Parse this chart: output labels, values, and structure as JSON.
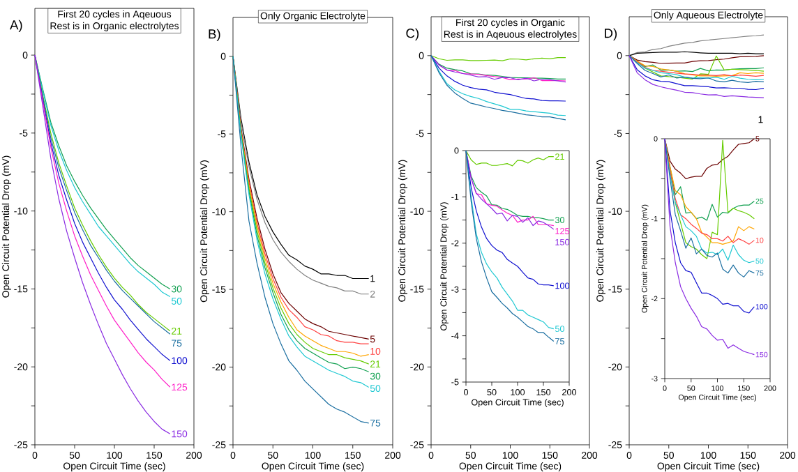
{
  "chart_data": [
    {
      "type": "line",
      "title": "First 20 cycles in Aqeuous",
      "subtitle": "Rest is in Organic electrolytes",
      "xlabel": "Open Circuit Time (sec)",
      "ylabel": "Open Circuit Potential Drop (mV)",
      "annotations": [
        "A)"
      ],
      "xlim": [
        0,
        200
      ],
      "ylim": [
        -25,
        3
      ],
      "xticks": [
        0,
        50,
        100,
        150,
        200
      ],
      "yticks": [
        -25,
        {
          "value": -22.5,
          "label": null
        },
        -20,
        {
          "value": -17.5,
          "label": null
        },
        -15,
        {
          "value": -12.5,
          "label": null
        },
        -10,
        {
          "value": -7.5,
          "label": null
        },
        -5,
        {
          "value": -2.5,
          "label": null
        },
        0
      ],
      "x": [
        0,
        10,
        20,
        30,
        40,
        50,
        60,
        70,
        80,
        90,
        100,
        110,
        120,
        130,
        140,
        150,
        160,
        170
      ],
      "series": [
        {
          "name": "30",
          "color": "#11a050",
          "values": [
            0,
            -2.2,
            -4.3,
            -5.8,
            -7.1,
            -8.1,
            -9.0,
            -9.8,
            -10.5,
            -11.2,
            -11.8,
            -12.4,
            -13.0,
            -13.5,
            -13.9,
            -14.3,
            -14.7,
            -15.0
          ]
        },
        {
          "name": "50",
          "color": "#1ec8d2",
          "values": [
            0,
            -2.3,
            -4.5,
            -6.1,
            -7.4,
            -8.5,
            -9.4,
            -10.2,
            -11.0,
            -11.6,
            -12.2,
            -12.8,
            -13.4,
            -13.9,
            -14.3,
            -14.7,
            -15.2,
            -15.5
          ]
        },
        {
          "name": "21",
          "color": "#66cc00",
          "values": [
            0,
            -2.6,
            -5.0,
            -6.9,
            -8.4,
            -9.8,
            -10.9,
            -11.9,
            -12.8,
            -13.6,
            -14.3,
            -14.9,
            -15.4,
            -16.0,
            -16.5,
            -16.9,
            -17.3,
            -17.7
          ]
        },
        {
          "name": "75",
          "color": "#1a6ea0",
          "values": [
            0,
            -2.7,
            -5.3,
            -7.2,
            -8.7,
            -10.1,
            -11.2,
            -12.2,
            -13.0,
            -13.8,
            -14.5,
            -15.1,
            -15.6,
            -16.1,
            -16.6,
            -17.1,
            -17.5,
            -17.9
          ]
        },
        {
          "name": "100",
          "color": "#1010d0",
          "values": [
            0,
            -2.9,
            -5.6,
            -7.7,
            -9.3,
            -10.8,
            -12.0,
            -13.0,
            -14.0,
            -14.9,
            -15.7,
            -16.3,
            -17.0,
            -17.6,
            -18.2,
            -18.7,
            -19.2,
            -19.6
          ]
        },
        {
          "name": "125",
          "color": "#ff1ec8",
          "values": [
            0,
            -3.0,
            -5.9,
            -8.2,
            -10.0,
            -11.6,
            -12.9,
            -14.1,
            -15.1,
            -16.1,
            -17.0,
            -17.7,
            -18.4,
            -19.1,
            -19.7,
            -20.2,
            -20.8,
            -21.3
          ]
        },
        {
          "name": "150",
          "color": "#8a2be2",
          "values": [
            0,
            -3.3,
            -6.6,
            -9.2,
            -11.3,
            -13.0,
            -14.6,
            -16.0,
            -17.3,
            -18.5,
            -19.5,
            -20.5,
            -21.4,
            -22.2,
            -22.9,
            -23.5,
            -24.0,
            -24.3
          ]
        }
      ]
    },
    {
      "type": "line",
      "title": "Only Organic Electrolyte",
      "xlabel": "Open Circuit Time (sec)",
      "ylabel": "Open Circuit Potential Drop (mV)",
      "annotations": [
        "B)"
      ],
      "xlim": [
        0,
        200
      ],
      "ylim": [
        -25,
        2.5
      ],
      "xticks": [
        0,
        50,
        100,
        150,
        200
      ],
      "yticks": [
        -25,
        {
          "value": -22.5,
          "label": null
        },
        -20,
        {
          "value": -17.5,
          "label": null
        },
        -15,
        {
          "value": -12.5,
          "label": null
        },
        -10,
        {
          "value": -7.5,
          "label": null
        },
        -5,
        {
          "value": -2.5,
          "label": null
        },
        0
      ],
      "x": [
        0,
        10,
        20,
        30,
        40,
        50,
        60,
        70,
        80,
        90,
        100,
        110,
        120,
        130,
        140,
        150,
        160,
        170
      ],
      "series": [
        {
          "name": "1",
          "color": "#000000",
          "values": [
            0,
            -4.0,
            -6.8,
            -8.9,
            -10.3,
            -11.3,
            -12.1,
            -12.8,
            -13.1,
            -13.5,
            -13.7,
            -14.0,
            -14.0,
            -14.1,
            -14.1,
            -14.3,
            -14.3,
            -14.3
          ]
        },
        {
          "name": "2",
          "color": "#808080",
          "values": [
            0,
            -4.2,
            -7.1,
            -9.2,
            -10.7,
            -11.8,
            -12.6,
            -13.2,
            -13.7,
            -14.1,
            -14.4,
            -14.6,
            -14.8,
            -14.9,
            -15.1,
            -15.1,
            -15.3,
            -15.3
          ]
        },
        {
          "name": "5",
          "color": "#6b0000",
          "values": [
            0,
            -4.6,
            -7.9,
            -10.4,
            -12.4,
            -14.0,
            -15.2,
            -15.9,
            -16.4,
            -16.9,
            -17.2,
            -17.4,
            -17.7,
            -17.8,
            -17.9,
            -18.0,
            -18.1,
            -18.2
          ]
        },
        {
          "name": "10",
          "color": "#ff4040",
          "values": [
            0,
            -4.7,
            -8.1,
            -10.7,
            -12.7,
            -14.3,
            -15.5,
            -16.3,
            -16.8,
            -17.4,
            -17.6,
            -17.9,
            -18.0,
            -18.3,
            -18.4,
            -18.4,
            -18.5,
            -18.5
          ]
        },
        {
          "color": "#ffa500",
          "values": [
            0,
            -4.8,
            -8.3,
            -10.9,
            -13.0,
            -14.6,
            -15.8,
            -16.8,
            -17.6,
            -18.0,
            -18.3,
            -18.6,
            -18.8,
            -19.0,
            -19.0,
            -19.1,
            -19.3,
            -19.2
          ]
        },
        {
          "name": "21",
          "color": "#66cc00",
          "values": [
            0,
            -4.9,
            -8.5,
            -11.2,
            -13.3,
            -14.9,
            -16.2,
            -17.2,
            -17.9,
            -18.4,
            -18.8,
            -19.0,
            -19.2,
            -19.2,
            -19.4,
            -19.5,
            -19.6,
            -19.8
          ]
        },
        {
          "name": "30",
          "color": "#11a050",
          "values": [
            0,
            -5.0,
            -8.7,
            -11.5,
            -13.6,
            -15.2,
            -16.6,
            -17.6,
            -18.3,
            -18.8,
            -19.1,
            -19.4,
            -19.7,
            -19.8,
            -20.1,
            -20.0,
            -20.1,
            -20.3
          ]
        },
        {
          "name": "50",
          "color": "#1ec8d2",
          "values": [
            0,
            -5.1,
            -8.9,
            -11.8,
            -14.0,
            -15.6,
            -16.9,
            -18.0,
            -18.7,
            -19.3,
            -19.6,
            -19.9,
            -20.2,
            -20.4,
            -20.6,
            -20.9,
            -21.0,
            -21.3
          ]
        },
        {
          "name": "75",
          "color": "#1a6ea0",
          "values": [
            0,
            -5.8,
            -10.6,
            -13.3,
            -15.5,
            -17.2,
            -18.5,
            -19.6,
            -20.2,
            -20.9,
            -21.4,
            -21.9,
            -22.4,
            -22.7,
            -22.9,
            -23.2,
            -23.5,
            -23.6
          ]
        }
      ]
    },
    {
      "type": "line",
      "title": "First 20 cycles in Organic",
      "subtitle": "Rest is in Aqeuous electrolytes",
      "xlabel": "Open Circuit Time (sec)",
      "ylabel": "Open Circuit Potential Drop (mV)",
      "annotations": [
        "C)"
      ],
      "xlim": [
        0,
        200
      ],
      "ylim": [
        -25,
        2.5
      ],
      "xticks": [
        0,
        50,
        100,
        150,
        200
      ],
      "yticks": [
        -25,
        {
          "value": -22.5,
          "label": null
        },
        -20,
        {
          "value": -17.5,
          "label": null
        },
        -15,
        {
          "value": -12.5,
          "label": null
        },
        -10,
        {
          "value": -7.5,
          "label": null
        },
        -5,
        {
          "value": -2.5,
          "label": null
        },
        0
      ],
      "x": [
        0,
        10,
        20,
        30,
        40,
        50,
        60,
        70,
        80,
        90,
        100,
        110,
        120,
        130,
        140,
        150,
        160,
        170
      ],
      "series": [
        {
          "color": "#66cc00",
          "values": [
            0,
            -0.2,
            -0.3,
            -0.27,
            -0.27,
            -0.32,
            -0.32,
            -0.3,
            -0.28,
            -0.33,
            -0.21,
            -0.22,
            -0.27,
            -0.2,
            -0.16,
            -0.2,
            -0.13,
            -0.13
          ]
        },
        {
          "color": "#11a050",
          "values": [
            0,
            -0.55,
            -0.8,
            -0.9,
            -0.98,
            -1.17,
            -1.18,
            -1.25,
            -1.27,
            -1.33,
            -1.4,
            -1.42,
            -1.42,
            -1.45,
            -1.45,
            -1.47,
            -1.5,
            -1.5
          ]
        },
        {
          "color": "#ff1ec8",
          "values": [
            0,
            -0.6,
            -0.93,
            -0.95,
            -1.15,
            -1.18,
            -1.2,
            -1.28,
            -1.35,
            -1.4,
            -1.55,
            -1.5,
            -1.5,
            -1.42,
            -1.6,
            -1.6,
            -1.6,
            -1.62
          ]
        },
        {
          "color": "#8a2be2",
          "values": [
            0,
            -0.6,
            -0.92,
            -1.05,
            -1.15,
            -1.25,
            -1.37,
            -1.35,
            -1.52,
            -1.4,
            -1.42,
            -1.55,
            -1.45,
            -1.62,
            -1.52,
            -1.55,
            -1.62,
            -1.7
          ]
        },
        {
          "color": "#1010d0",
          "values": [
            0,
            -0.8,
            -1.3,
            -1.65,
            -1.9,
            -2.05,
            -2.15,
            -2.2,
            -2.35,
            -2.43,
            -2.5,
            -2.63,
            -2.75,
            -2.78,
            -2.88,
            -2.9,
            -2.9,
            -2.92
          ]
        },
        {
          "color": "#1ec8d2",
          "values": [
            0,
            -1.0,
            -1.8,
            -2.2,
            -2.45,
            -2.62,
            -2.75,
            -2.95,
            -3.1,
            -3.25,
            -3.45,
            -3.45,
            -3.55,
            -3.6,
            -3.65,
            -3.7,
            -3.82,
            -3.85
          ]
        },
        {
          "color": "#1a6ea0",
          "values": [
            0,
            -1.1,
            -1.9,
            -2.4,
            -2.75,
            -3.05,
            -3.17,
            -3.3,
            -3.4,
            -3.52,
            -3.6,
            -3.7,
            -3.8,
            -3.85,
            -3.93,
            -3.93,
            -4.03,
            -4.12
          ]
        }
      ]
    },
    {
      "type": "line",
      "xlabel": "Open Circuit Time (sec)",
      "ylabel": "Open Circuit Potential Drop (mV)",
      "xlim": [
        0,
        200
      ],
      "ylim": [
        -5,
        0
      ],
      "xticks": [
        0,
        50,
        100,
        150,
        200
      ],
      "yticks": [
        -5,
        {
          "value": -4.5,
          "label": null
        },
        -4,
        {
          "value": -3.5,
          "label": null
        },
        -3,
        {
          "value": -2.5,
          "label": null
        },
        -2,
        {
          "value": -1.5,
          "label": null
        },
        -1,
        {
          "value": -0.5,
          "label": null
        },
        0
      ],
      "x": [
        0,
        10,
        20,
        30,
        40,
        50,
        60,
        70,
        80,
        90,
        100,
        110,
        120,
        130,
        140,
        150,
        160,
        170
      ],
      "series": [
        {
          "name": "21",
          "color": "#66cc00",
          "values": [
            0,
            -0.2,
            -0.3,
            -0.27,
            -0.27,
            -0.32,
            -0.32,
            -0.3,
            -0.28,
            -0.33,
            -0.21,
            -0.22,
            -0.27,
            -0.2,
            -0.16,
            -0.2,
            -0.13,
            -0.13
          ]
        },
        {
          "name": "30",
          "color": "#11a050",
          "values": [
            0,
            -0.55,
            -0.8,
            -0.9,
            -0.98,
            -1.17,
            -1.18,
            -1.25,
            -1.27,
            -1.33,
            -1.4,
            -1.42,
            -1.42,
            -1.45,
            -1.45,
            -1.47,
            -1.5,
            -1.5
          ]
        },
        {
          "name": "125",
          "color": "#ff1ec8",
          "values": [
            0,
            -0.6,
            -0.93,
            -0.95,
            -1.15,
            -1.18,
            -1.2,
            -1.28,
            -1.35,
            -1.4,
            -1.55,
            -1.5,
            -1.5,
            -1.42,
            -1.6,
            -1.6,
            -1.6,
            -1.62
          ]
        },
        {
          "name": "150",
          "color": "#8a2be2",
          "values": [
            0,
            -0.6,
            -0.92,
            -1.05,
            -1.15,
            -1.25,
            -1.37,
            -1.35,
            -1.52,
            -1.4,
            -1.42,
            -1.55,
            -1.45,
            -1.62,
            -1.52,
            -1.55,
            -1.62,
            -1.7
          ]
        },
        {
          "name": "100",
          "color": "#1010d0",
          "values": [
            0,
            -0.8,
            -1.3,
            -1.65,
            -1.9,
            -2.05,
            -2.15,
            -2.2,
            -2.35,
            -2.43,
            -2.5,
            -2.63,
            -2.75,
            -2.78,
            -2.88,
            -2.9,
            -2.9,
            -2.92
          ]
        },
        {
          "name": "50",
          "color": "#1ec8d2",
          "values": [
            0,
            -1.0,
            -1.8,
            -2.2,
            -2.45,
            -2.62,
            -2.75,
            -2.95,
            -3.1,
            -3.25,
            -3.45,
            -3.45,
            -3.55,
            -3.6,
            -3.65,
            -3.7,
            -3.82,
            -3.85
          ]
        },
        {
          "name": "75",
          "color": "#1a6ea0",
          "values": [
            0,
            -1.1,
            -1.9,
            -2.4,
            -2.75,
            -3.05,
            -3.17,
            -3.3,
            -3.4,
            -3.52,
            -3.6,
            -3.7,
            -3.8,
            -3.85,
            -3.93,
            -3.93,
            -4.03,
            -4.12
          ]
        }
      ]
    },
    {
      "type": "line",
      "title": "Only Aqueous Electrolyte",
      "xlabel": "Open Circuit Time (sec)",
      "ylabel": "Open Circuit Potential Drop (mV)",
      "annotations": [
        "D)",
        "1"
      ],
      "xlim": [
        0,
        200
      ],
      "ylim": [
        -25,
        2.5
      ],
      "xticks": [
        0,
        50,
        100,
        150,
        200
      ],
      "yticks": [
        -25,
        {
          "value": -22.5,
          "label": null
        },
        -20,
        {
          "value": -17.5,
          "label": null
        },
        -15,
        {
          "value": -12.5,
          "label": null
        },
        -10,
        {
          "value": -7.5,
          "label": null
        },
        -5,
        {
          "value": -2.5,
          "label": null
        },
        0
      ],
      "x": [
        0,
        10,
        20,
        30,
        40,
        50,
        60,
        70,
        80,
        90,
        100,
        110,
        120,
        130,
        140,
        150,
        160,
        170
      ],
      "series": [
        {
          "color": "#808080",
          "values": [
            0,
            0.2,
            0.25,
            0.4,
            0.45,
            0.6,
            0.7,
            0.8,
            0.85,
            0.95,
            1.0,
            1.05,
            1.1,
            1.15,
            1.2,
            1.25,
            1.28,
            1.33
          ]
        },
        {
          "color": "#000000",
          "values": [
            0,
            0.15,
            0.18,
            0.2,
            0.22,
            0.22,
            0.22,
            0.25,
            0.22,
            0.18,
            0.15,
            0.15,
            0.15,
            0.15,
            0.12,
            0.15,
            0.12,
            0.12
          ]
        },
        {
          "color": "#6b0000",
          "values": [
            0,
            -0.28,
            -0.38,
            -0.43,
            -0.5,
            -0.48,
            -0.47,
            -0.47,
            -0.37,
            -0.33,
            -0.32,
            -0.26,
            -0.22,
            -0.14,
            -0.07,
            -0.06,
            -0.05,
            0.0
          ]
        },
        {
          "color": "#11a050",
          "values": [
            0,
            -0.35,
            -0.7,
            -0.6,
            -0.93,
            -0.92,
            -1.0,
            -0.98,
            -1.02,
            -0.82,
            -0.98,
            -0.92,
            -0.93,
            -0.87,
            -0.84,
            -0.83,
            -0.83,
            -0.78
          ]
        },
        {
          "color": "#66cc00",
          "values": [
            0,
            -0.4,
            -0.8,
            -1.05,
            -1.3,
            -1.35,
            -1.38,
            -1.45,
            -1.5,
            -1.17,
            -1.2,
            -0.02,
            -0.92,
            -0.87,
            -0.9,
            -0.92,
            -0.95,
            -1.0
          ]
        },
        {
          "color": "#ffa500",
          "values": [
            0,
            -0.35,
            -0.65,
            -0.7,
            -0.85,
            -0.92,
            -1.0,
            -1.17,
            -1.23,
            -1.3,
            -1.3,
            -1.32,
            -1.3,
            -1.28,
            -1.1,
            -1.15,
            -1.1,
            -1.13
          ]
        },
        {
          "color": "#ff4040",
          "values": [
            0,
            -0.4,
            -0.75,
            -0.95,
            -1.0,
            -1.07,
            -1.12,
            -1.18,
            -1.2,
            -1.25,
            -1.25,
            -1.28,
            -1.22,
            -1.3,
            -1.25,
            -1.28,
            -1.32,
            -1.27
          ]
        },
        {
          "color": "#1ec8d2",
          "values": [
            0,
            -0.45,
            -0.8,
            -0.95,
            -1.1,
            -1.15,
            -1.22,
            -1.38,
            -1.43,
            -1.42,
            -1.45,
            -1.38,
            -1.52,
            -1.33,
            -1.45,
            -1.52,
            -1.55,
            -1.53
          ]
        },
        {
          "color": "#1a6ea0",
          "values": [
            0,
            -0.5,
            -0.95,
            -1.15,
            -1.37,
            -1.24,
            -1.44,
            -1.38,
            -1.46,
            -1.48,
            -1.43,
            -1.63,
            -1.68,
            -1.58,
            -1.68,
            -1.73,
            -1.65,
            -1.68
          ]
        },
        {
          "color": "#1010d0",
          "values": [
            0,
            -0.9,
            -1.3,
            -1.55,
            -1.65,
            -1.67,
            -1.8,
            -1.93,
            -1.93,
            -1.96,
            -2.0,
            -2.07,
            -2.06,
            -2.09,
            -2.09,
            -2.16,
            -2.18,
            -2.1
          ]
        },
        {
          "color": "#8a2be2",
          "values": [
            0,
            -1.1,
            -1.55,
            -1.85,
            -2.0,
            -2.12,
            -2.22,
            -2.35,
            -2.38,
            -2.46,
            -2.52,
            -2.51,
            -2.62,
            -2.58,
            -2.62,
            -2.66,
            -2.68,
            -2.7
          ]
        }
      ]
    },
    {
      "type": "line",
      "xlabel": "Open Circuit Time (sec)",
      "ylabel": "Open Circuit Potential Drop (mV)",
      "xlim": [
        0,
        200
      ],
      "ylim": [
        -3,
        0
      ],
      "xticks": [
        0,
        50,
        100,
        150,
        200
      ],
      "yticks": [
        -3,
        {
          "value": -2.5,
          "label": null
        },
        -2,
        {
          "value": -1.5,
          "label": null
        },
        -1,
        {
          "value": -0.5,
          "label": null
        },
        0
      ],
      "x": [
        0,
        10,
        20,
        30,
        40,
        50,
        60,
        70,
        80,
        90,
        100,
        110,
        120,
        130,
        140,
        150,
        160,
        170
      ],
      "series": [
        {
          "name": "5",
          "color": "#6b0000",
          "values": [
            0,
            -0.28,
            -0.38,
            -0.43,
            -0.5,
            -0.48,
            -0.47,
            -0.47,
            -0.37,
            -0.33,
            -0.32,
            -0.26,
            -0.22,
            -0.14,
            -0.07,
            -0.06,
            -0.05,
            0.0
          ]
        },
        {
          "name": "25",
          "color": "#11a050",
          "values": [
            0,
            -0.35,
            -0.7,
            -0.6,
            -0.93,
            -0.92,
            -1.0,
            -0.98,
            -1.02,
            -0.82,
            -0.98,
            -0.92,
            -0.93,
            -0.87,
            -0.84,
            -0.83,
            -0.83,
            -0.78
          ]
        },
        {
          "color": "#66cc00",
          "values": [
            0,
            -0.4,
            -0.8,
            -1.05,
            -1.3,
            -1.35,
            -1.38,
            -1.45,
            -1.5,
            -1.17,
            -1.2,
            -0.02,
            -0.92,
            -0.87,
            -0.9,
            -0.92,
            -0.95,
            -1.0
          ]
        },
        {
          "color": "#ffa500",
          "values": [
            0,
            -0.35,
            -0.65,
            -0.7,
            -0.85,
            -0.92,
            -1.0,
            -1.17,
            -1.23,
            -1.3,
            -1.3,
            -1.32,
            -1.3,
            -1.28,
            -1.1,
            -1.15,
            -1.1,
            -1.13
          ]
        },
        {
          "name": "10",
          "color": "#ff4040",
          "values": [
            0,
            -0.4,
            -0.75,
            -0.95,
            -1.0,
            -1.07,
            -1.12,
            -1.18,
            -1.2,
            -1.25,
            -1.25,
            -1.28,
            -1.22,
            -1.3,
            -1.25,
            -1.28,
            -1.32,
            -1.27
          ]
        },
        {
          "name": "50",
          "color": "#1ec8d2",
          "values": [
            0,
            -0.45,
            -0.8,
            -0.95,
            -1.1,
            -1.15,
            -1.22,
            -1.38,
            -1.43,
            -1.42,
            -1.45,
            -1.38,
            -1.52,
            -1.33,
            -1.45,
            -1.52,
            -1.55,
            -1.53
          ]
        },
        {
          "name": "75",
          "color": "#1a6ea0",
          "values": [
            0,
            -0.5,
            -0.95,
            -1.15,
            -1.37,
            -1.24,
            -1.44,
            -1.38,
            -1.46,
            -1.48,
            -1.43,
            -1.63,
            -1.68,
            -1.58,
            -1.68,
            -1.73,
            -1.65,
            -1.68
          ]
        },
        {
          "name": "100",
          "color": "#1010d0",
          "values": [
            0,
            -0.9,
            -1.3,
            -1.55,
            -1.65,
            -1.67,
            -1.8,
            -1.93,
            -1.93,
            -1.96,
            -2.0,
            -2.07,
            -2.06,
            -2.09,
            -2.09,
            -2.16,
            -2.18,
            -2.1
          ]
        },
        {
          "name": "150",
          "color": "#8a2be2",
          "values": [
            0,
            -1.1,
            -1.55,
            -1.85,
            -2.0,
            -2.12,
            -2.22,
            -2.35,
            -2.38,
            -2.46,
            -2.52,
            -2.51,
            -2.62,
            -2.58,
            -2.62,
            -2.66,
            -2.68,
            -2.7
          ]
        }
      ]
    }
  ]
}
